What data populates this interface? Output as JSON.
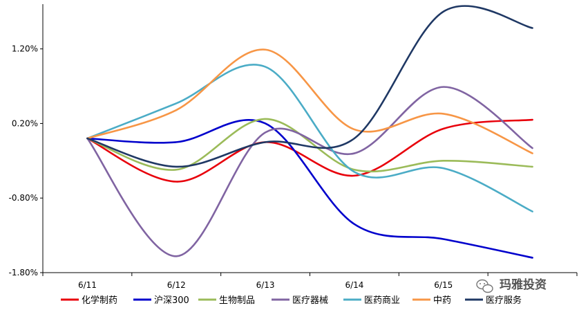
{
  "chart_data": {
    "type": "line",
    "categories": [
      "6/11",
      "6/12",
      "6/13",
      "6/14",
      "6/15",
      ""
    ],
    "yticks": [
      "-1.80%",
      "-0.80%",
      "0.20%",
      "1.20%"
    ],
    "ytick_values": [
      -1.8,
      -0.8,
      0.2,
      1.2
    ],
    "ylim": [
      -1.8,
      1.8
    ],
    "legend_position": "bottom",
    "grid": false,
    "series": [
      {
        "name": "化学制药",
        "color": "#e8000b",
        "values": [
          0.0,
          -0.58,
          -0.05,
          -0.5,
          0.13,
          0.25
        ]
      },
      {
        "name": "沪深300",
        "color": "#0000cc",
        "values": [
          0.0,
          -0.05,
          0.2,
          -1.15,
          -1.35,
          -1.6
        ]
      },
      {
        "name": "生物制品",
        "color": "#9bbb59",
        "values": [
          0.0,
          -0.42,
          0.26,
          -0.42,
          -0.3,
          -0.38
        ]
      },
      {
        "name": "医疗器械",
        "color": "#8064a2",
        "values": [
          0.0,
          -1.58,
          0.08,
          -0.2,
          0.69,
          -0.13
        ]
      },
      {
        "name": "医药商业",
        "color": "#4bacc6",
        "values": [
          0.0,
          0.47,
          0.96,
          -0.45,
          -0.4,
          -0.98
        ]
      },
      {
        "name": "中药",
        "color": "#f79646",
        "values": [
          0.0,
          0.38,
          1.19,
          0.12,
          0.33,
          -0.2
        ]
      },
      {
        "name": "医疗服务",
        "color": "#1f3864",
        "values": [
          0.0,
          -0.38,
          -0.05,
          0.0,
          1.7,
          1.48
        ]
      }
    ]
  },
  "watermark": {
    "text": "玛雅投资",
    "icon": "wechat-icon"
  }
}
